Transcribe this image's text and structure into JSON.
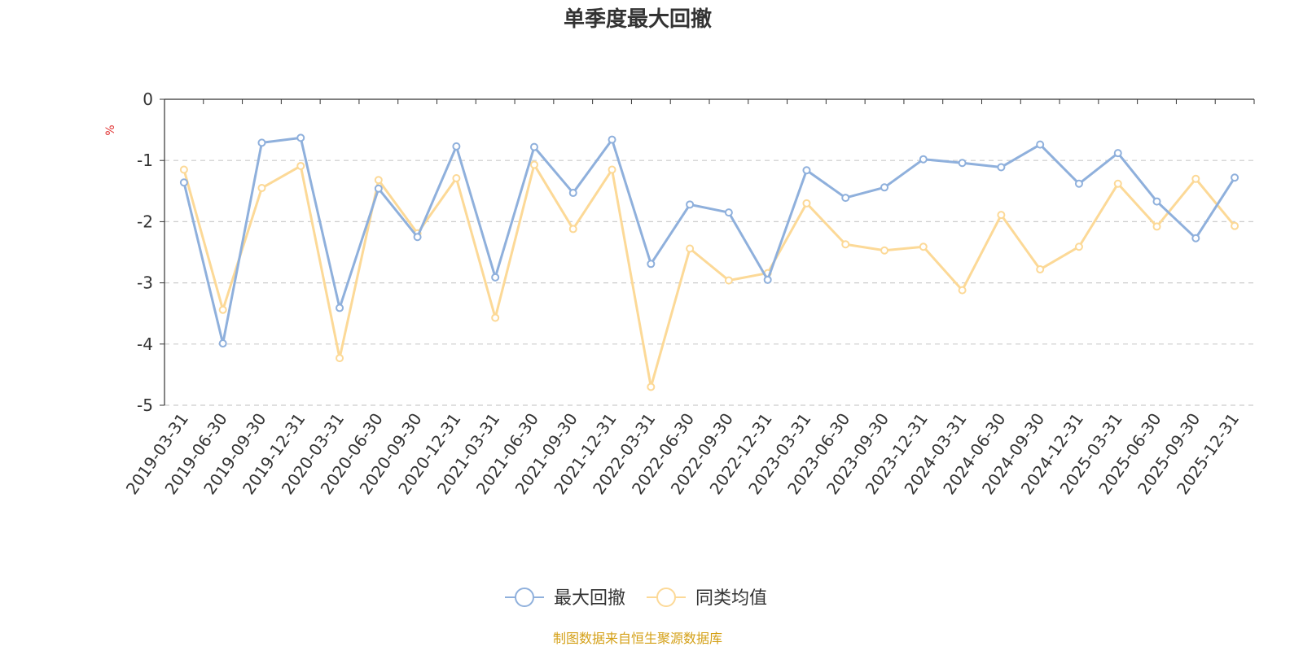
{
  "colors": {
    "max_drawdown": "#8fb0dc",
    "peer_average": "#fcd997",
    "unit": "#e03030",
    "source": "#d4a017",
    "grid": "#cccccc",
    "axis": "#333333"
  },
  "chart_data": {
    "type": "line",
    "title": "单季度最大回撤",
    "ylabel": "%",
    "ylim": [
      -5,
      0
    ],
    "yticks": [
      0,
      -1,
      -2,
      -3,
      -4,
      -5
    ],
    "grid": true,
    "legend_position": "bottom-center",
    "categories": [
      "2019-03-31",
      "2019-06-30",
      "2019-09-30",
      "2019-12-31",
      "2020-03-31",
      "2020-06-30",
      "2020-09-30",
      "2020-12-31",
      "2021-03-31",
      "2021-06-30",
      "2021-09-30",
      "2021-12-31",
      "2022-03-31",
      "2022-06-30",
      "2022-09-30",
      "2022-12-31",
      "2023-03-31",
      "2023-06-30",
      "2023-09-30",
      "2023-12-31",
      "2024-03-31",
      "2024-06-30",
      "2024-09-30",
      "2024-12-31",
      "2025-03-31",
      "2025-06-30",
      "2025-09-30",
      "2025-12-31"
    ],
    "series": [
      {
        "name": "最大回撤",
        "values": [
          -1.36,
          -3.99,
          -0.71,
          -0.63,
          -3.41,
          -1.46,
          -2.25,
          -0.77,
          -2.91,
          -0.78,
          -1.53,
          -0.66,
          -2.69,
          -1.72,
          -1.85,
          -2.95,
          -1.16,
          -1.61,
          -1.44,
          -0.98,
          -1.04,
          -1.11,
          -0.74,
          -1.38,
          -0.88,
          -1.67,
          -2.27,
          -1.28
        ]
      },
      {
        "name": "同类均值",
        "values": [
          -1.15,
          -3.44,
          -1.45,
          -1.09,
          -4.23,
          -1.32,
          -2.19,
          -1.29,
          -3.57,
          -1.07,
          -2.12,
          -1.15,
          -4.7,
          -2.44,
          -2.96,
          -2.84,
          -1.7,
          -2.37,
          -2.47,
          -2.41,
          -3.12,
          -1.89,
          -2.78,
          -2.41,
          -1.38,
          -2.08,
          -1.3,
          -2.07
        ]
      }
    ]
  },
  "footer": {
    "source": "制图数据来自恒生聚源数据库"
  }
}
